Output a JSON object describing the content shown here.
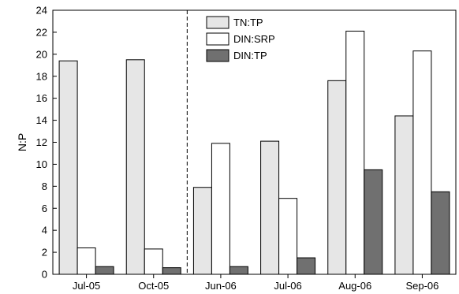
{
  "chart_data": {
    "type": "bar",
    "title": "",
    "xlabel": "",
    "ylabel": "N:P",
    "ylim": [
      0,
      24
    ],
    "yticks": [
      0,
      2,
      4,
      6,
      8,
      10,
      12,
      14,
      16,
      18,
      20,
      22,
      24
    ],
    "categories": [
      "Jul-05",
      "Oct-05",
      "Jun-06",
      "Jul-06",
      "Aug-06",
      "Sep-06"
    ],
    "series": [
      {
        "name": "TN:TP",
        "color": "#e6e6e6",
        "values": [
          19.4,
          19.5,
          7.9,
          12.1,
          17.6,
          14.4
        ]
      },
      {
        "name": "DIN:SRP",
        "color": "#ffffff",
        "values": [
          2.4,
          2.3,
          11.9,
          6.9,
          22.1,
          20.3
        ]
      },
      {
        "name": "DIN:TP",
        "color": "#707070",
        "values": [
          0.7,
          0.6,
          0.7,
          1.5,
          9.5,
          7.5
        ]
      }
    ],
    "divider_after_category": "Oct-05",
    "legend_position": "top-center",
    "grid": false
  }
}
